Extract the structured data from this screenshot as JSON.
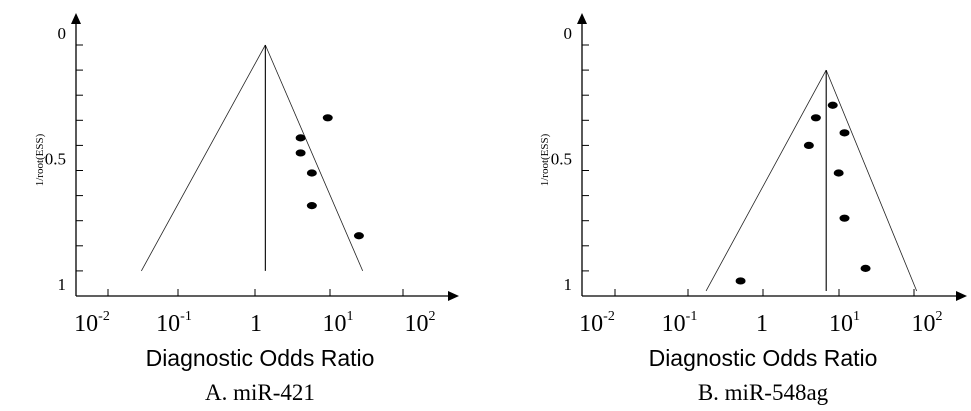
{
  "chart_data": [
    {
      "type": "scatter",
      "title": "",
      "caption": "A. miR-421",
      "xlabel": "Diagnostic Odds Ratio",
      "ylabel": "1/root(ESS)",
      "x_scale": "log",
      "xlim": [
        0.01,
        100
      ],
      "ylim": [
        0,
        1
      ],
      "y_inverted": true,
      "x_ticks": [
        {
          "base": "10",
          "exp": "-2"
        },
        {
          "base": "10",
          "exp": "-1"
        },
        {
          "base": "1",
          "exp": ""
        },
        {
          "base": "10",
          "exp": "1"
        },
        {
          "base": "10",
          "exp": "2"
        }
      ],
      "y_ticks": [
        "0",
        "0.5",
        "1"
      ],
      "summary_estimate": 1.3,
      "funnel": {
        "apex_y": 0.0,
        "base_y": 0.9,
        "base_left": 0.04,
        "base_right": 20
      },
      "points": [
        {
          "x": 7.5,
          "y": 0.29
        },
        {
          "x": 3.5,
          "y": 0.37
        },
        {
          "x": 3.5,
          "y": 0.43
        },
        {
          "x": 4.8,
          "y": 0.51
        },
        {
          "x": 4.8,
          "y": 0.64
        },
        {
          "x": 18,
          "y": 0.76
        }
      ]
    },
    {
      "type": "scatter",
      "title": "",
      "caption": "B. miR-548ag",
      "xlabel": "Diagnostic Odds Ratio",
      "ylabel": "1/root(ESS)",
      "x_scale": "log",
      "xlim": [
        0.01,
        100
      ],
      "ylim": [
        0,
        1
      ],
      "y_inverted": true,
      "x_ticks": [
        {
          "base": "10",
          "exp": "-2"
        },
        {
          "base": "10",
          "exp": "-1"
        },
        {
          "base": "1",
          "exp": ""
        },
        {
          "base": "10",
          "exp": "1"
        },
        {
          "base": "10",
          "exp": "2"
        }
      ],
      "y_ticks": [
        "0",
        "0.5",
        "1"
      ],
      "summary_estimate": 6,
      "funnel": {
        "apex_y": 0.1,
        "base_y": 0.98,
        "base_left": 0.21,
        "base_right": 75
      },
      "points": [
        {
          "x": 7.2,
          "y": 0.24
        },
        {
          "x": 4.5,
          "y": 0.29
        },
        {
          "x": 10,
          "y": 0.35
        },
        {
          "x": 3.7,
          "y": 0.4
        },
        {
          "x": 8.5,
          "y": 0.51
        },
        {
          "x": 10,
          "y": 0.69
        },
        {
          "x": 18,
          "y": 0.89
        },
        {
          "x": 0.55,
          "y": 0.94
        }
      ]
    }
  ]
}
